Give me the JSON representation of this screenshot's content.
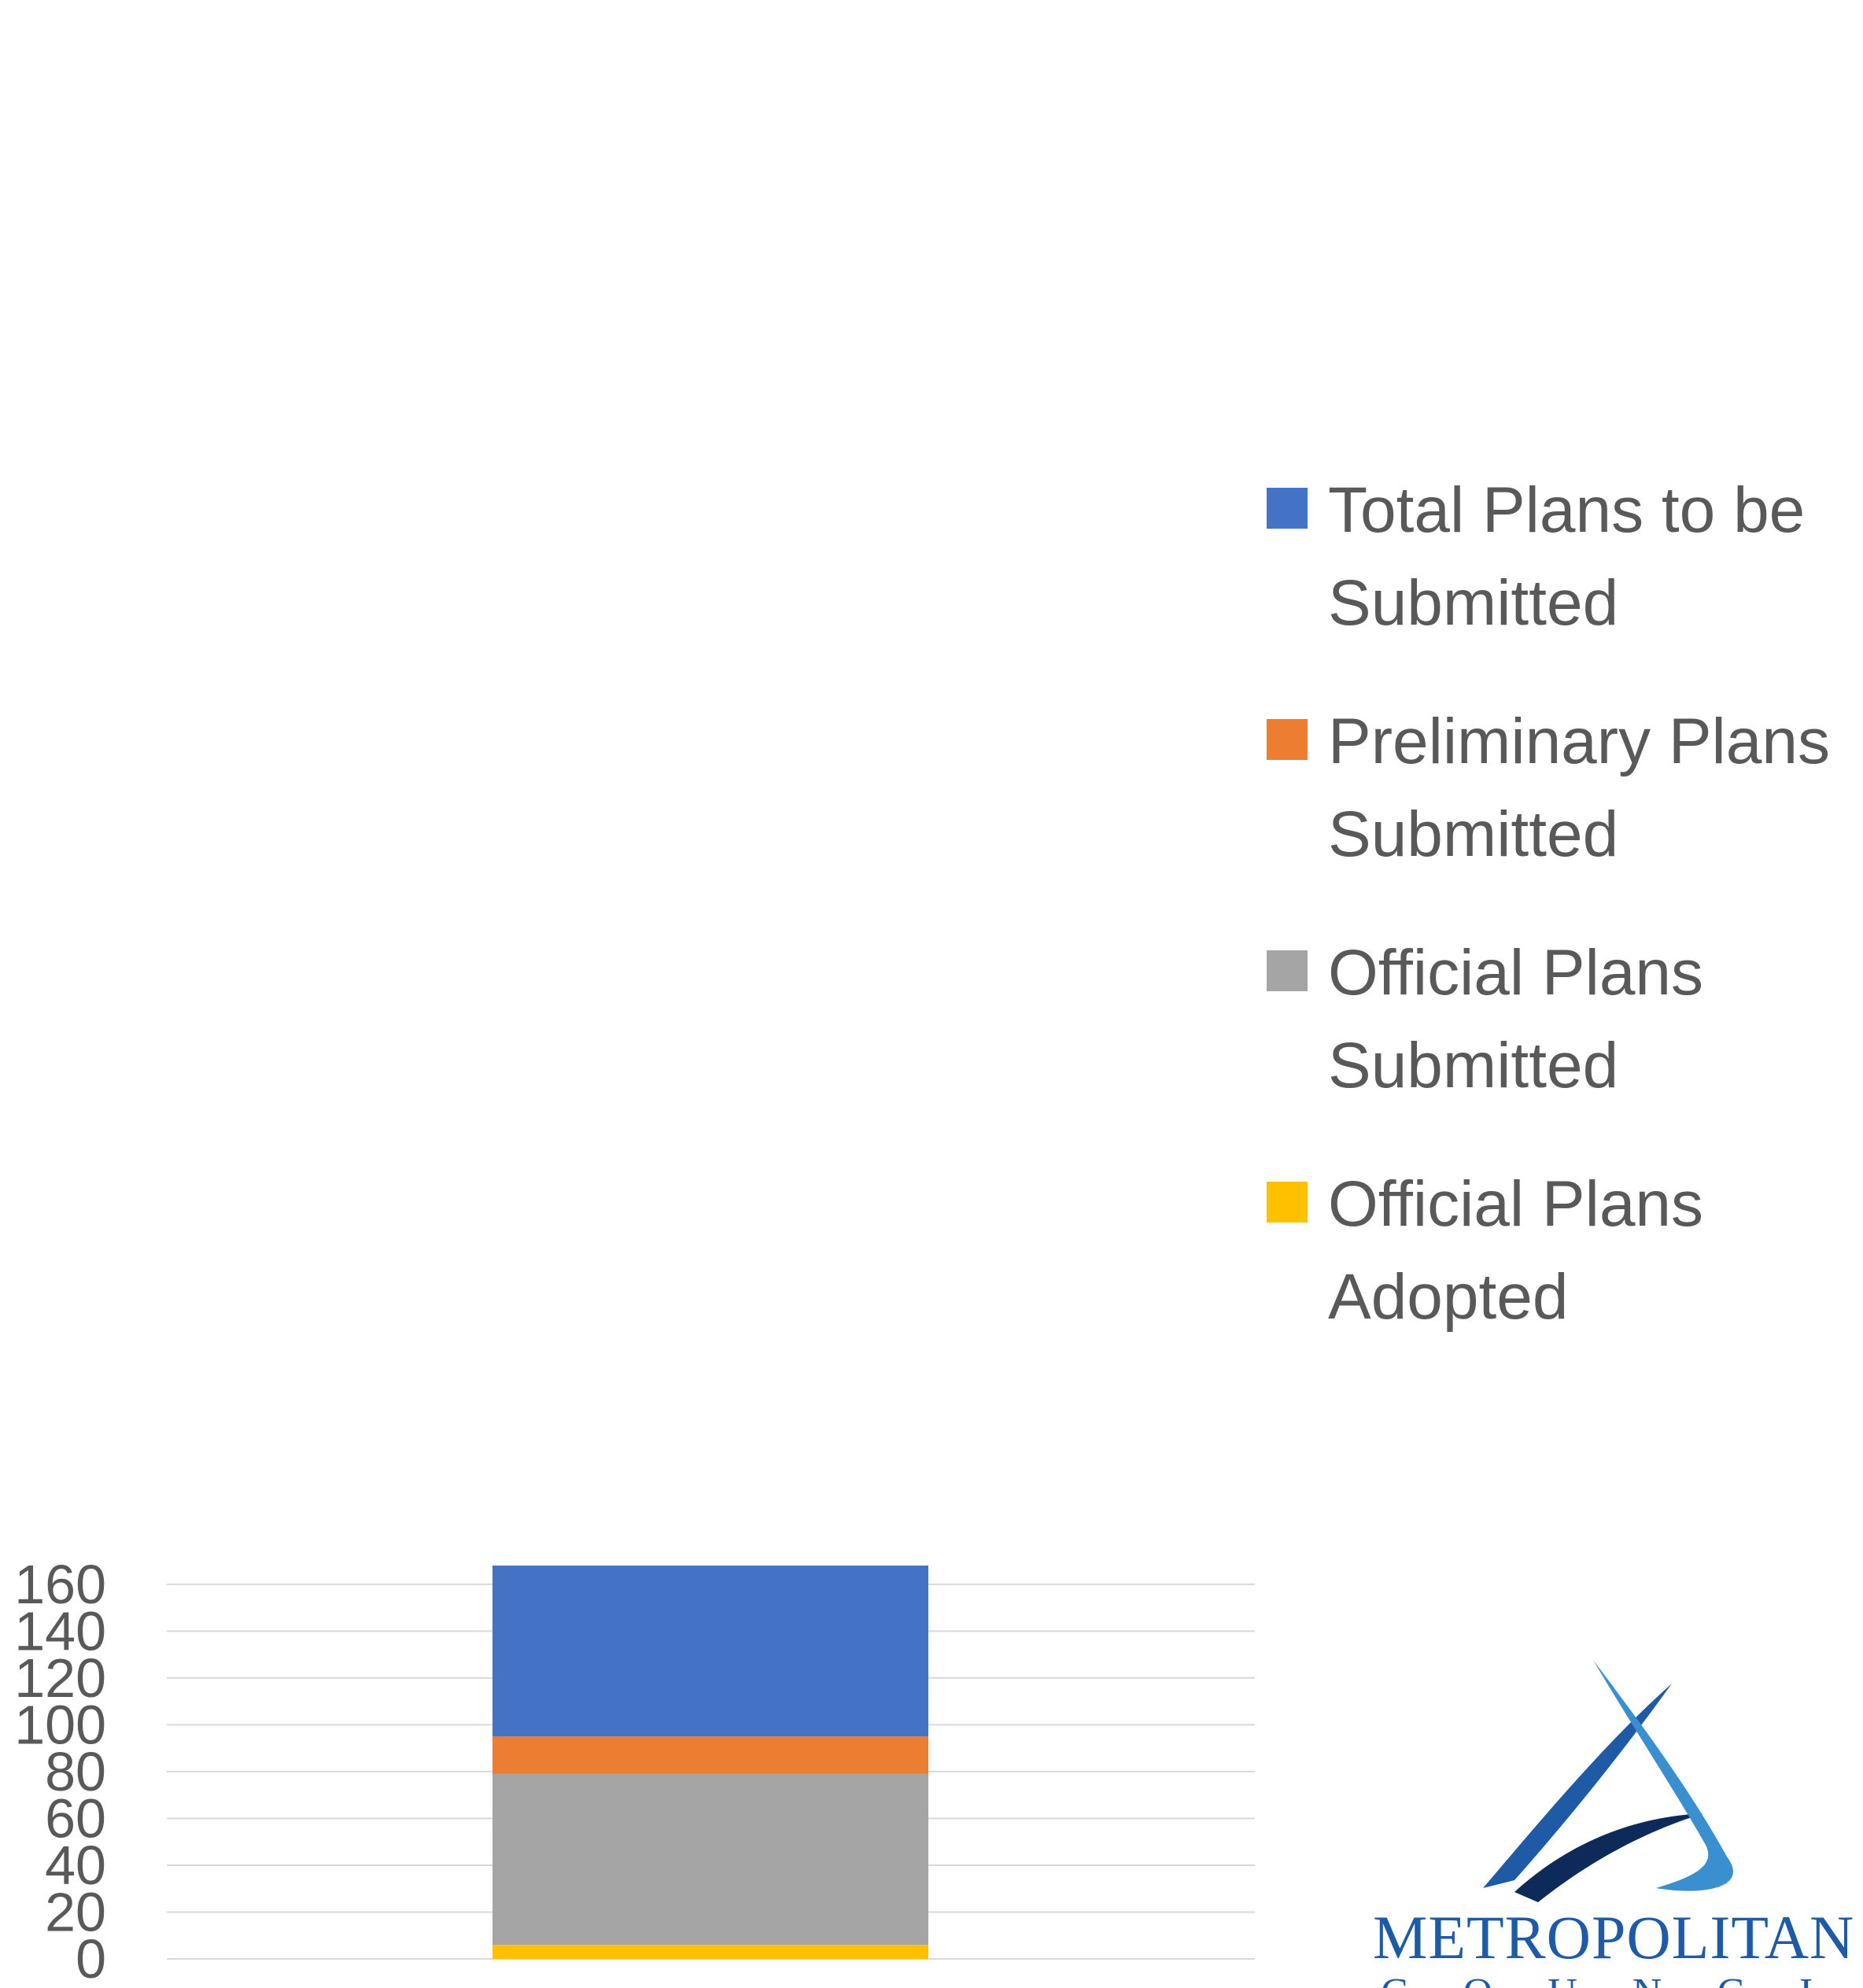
{
  "chart_data": {
    "type": "bar",
    "stacked": true,
    "categories": [
      ""
    ],
    "ylim": [
      0,
      168
    ],
    "yticks": [
      0,
      20,
      40,
      60,
      80,
      100,
      120,
      140,
      160
    ],
    "grid": true,
    "legend_position": "right",
    "series": [
      {
        "name": "Official Plans Adopted",
        "values": [
          6
        ],
        "color": "#FFC000"
      },
      {
        "name": "Official Plans Submitted",
        "values": [
          73
        ],
        "color": "#A5A5A5"
      },
      {
        "name": "Preliminary Plans Submitted",
        "values": [
          16
        ],
        "color": "#ED7D31"
      },
      {
        "name": "Total Plans to be Submitted",
        "values": [
          73
        ],
        "color": "#4472C4"
      }
    ],
    "legend_order": [
      "Total Plans to be Submitted",
      "Preliminary Plans Submitted",
      "Official Plans Submitted",
      "Official Plans Adopted"
    ]
  },
  "logo": {
    "text": "METROPOLITAN",
    "subtext": "COUNCIL"
  }
}
